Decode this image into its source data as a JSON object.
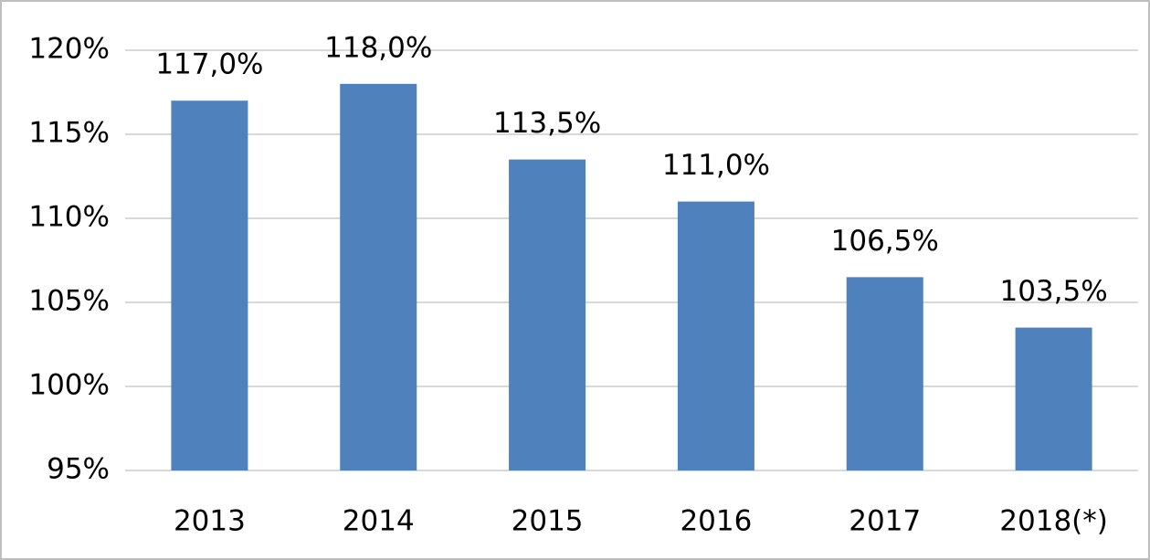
{
  "chart_data": {
    "type": "bar",
    "categories": [
      "2013",
      "2014",
      "2015",
      "2016",
      "2017",
      "2018(*)"
    ],
    "values": [
      117.0,
      118.0,
      113.5,
      111.0,
      106.5,
      103.5
    ],
    "value_labels": [
      "117,0%",
      "118,0%",
      "113,5%",
      "111,0%",
      "106,5%",
      "103,5%"
    ],
    "color": "#4f81bd",
    "ylim": [
      95,
      120
    ],
    "yticks": [
      {
        "value": 95,
        "label": "95%"
      },
      {
        "value": 100,
        "label": "100%"
      },
      {
        "value": 105,
        "label": "105%"
      },
      {
        "value": 110,
        "label": "110%"
      },
      {
        "value": 115,
        "label": "115%"
      },
      {
        "value": 120,
        "label": "120%"
      }
    ],
    "grid": true
  }
}
